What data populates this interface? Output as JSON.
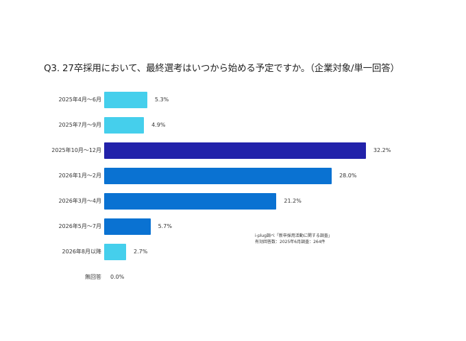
{
  "chart_data": {
    "type": "bar",
    "orientation": "horizontal",
    "title": "Q3. 27卒採用において、最終選考はいつから始める予定ですか。（企業対象/単一回答）",
    "categories": [
      "2025年4月～6月",
      "2025年7月～9月",
      "2025年10月～12月",
      "2026年1月～2月",
      "2026年3月～4月",
      "2026年5月～7月",
      "2026年8月以降",
      "無回答"
    ],
    "values": [
      5.3,
      4.9,
      32.2,
      28.0,
      21.2,
      5.7,
      2.7,
      0.0
    ],
    "value_labels": [
      "5.3%",
      "4.9%",
      "32.2%",
      "28.0%",
      "21.2%",
      "5.7%",
      "2.7%",
      "0.0%"
    ],
    "bar_colors": [
      "#45CFEC",
      "#45CFEC",
      "#2222AA",
      "#0A72D2",
      "#0A72D2",
      "#0A72D2",
      "#45CFEC",
      "#45CFEC"
    ],
    "xlabel": "",
    "ylabel": "",
    "unit": "%",
    "grid": false,
    "legend": null,
    "annotation": [
      "i-plug調べ「新卒採用活動に関する調査」",
      "有効回答数：2025年6月調査：264件"
    ]
  },
  "page": {
    "title": "Q3. 27卒採用において、最終選考はいつから始める予定ですか。（企業対象/単一回答）",
    "note_line1": "i-plug調べ「新卒採用活動に関する調査」",
    "note_line2": "有効回答数：2025年6月調査：264件"
  }
}
